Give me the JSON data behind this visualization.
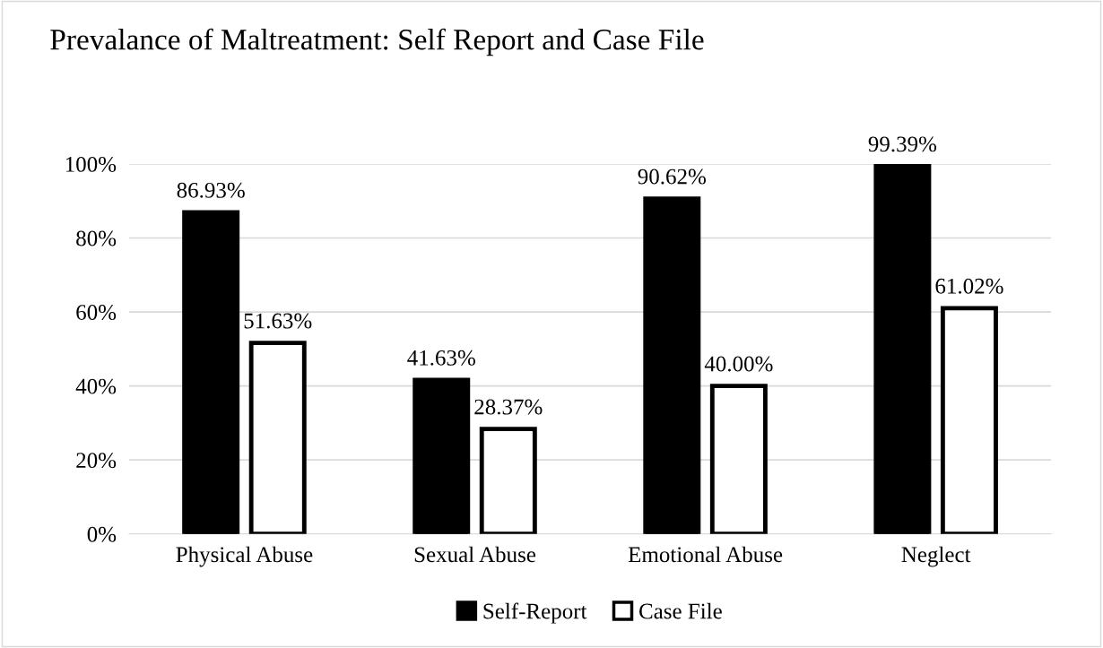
{
  "chart_data": {
    "type": "bar",
    "title": "Prevalance of Maltreatment: Self Report and Case File",
    "categories": [
      "Physical Abuse",
      "Sexual Abuse",
      "Emotional Abuse",
      "Neglect"
    ],
    "series": [
      {
        "name": "Self-Report",
        "color": "#000000",
        "values": [
          86.93,
          41.63,
          90.62,
          99.39
        ],
        "value_labels": [
          "86.93%",
          "41.63%",
          "90.62%",
          "99.39%"
        ]
      },
      {
        "name": "Case File",
        "color": "#ffffff",
        "values": [
          51.63,
          28.37,
          40.0,
          61.02
        ],
        "value_labels": [
          "51.63%",
          "28.37%",
          "40.00%",
          "61.02%"
        ]
      }
    ],
    "ylim": [
      0,
      100
    ],
    "yticks": [
      {
        "value": 0,
        "label": "0%"
      },
      {
        "value": 20,
        "label": "20%"
      },
      {
        "value": 40,
        "label": "40%"
      },
      {
        "value": 60,
        "label": "60%"
      },
      {
        "value": 80,
        "label": "80%"
      },
      {
        "value": 100,
        "label": "100%"
      }
    ],
    "grid": "y",
    "legend": "bottom"
  }
}
